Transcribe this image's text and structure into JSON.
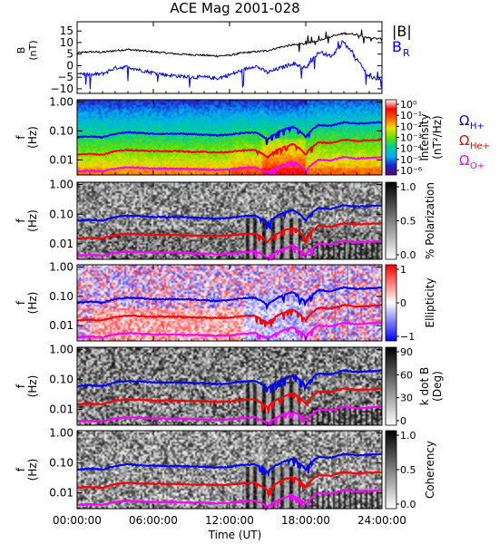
{
  "title": "ACE Mag 2001-028",
  "x_axis": {
    "label": "Time (UT)",
    "ticks": [
      "00:00:00",
      "06:00:00",
      "12:00:00",
      "18:00:00",
      "24:00:00"
    ],
    "tick_hours": [
      0,
      6,
      12,
      18,
      24
    ],
    "range_hours": [
      0,
      24
    ]
  },
  "freq_axis": {
    "scale": "log",
    "range_hz": [
      0.003,
      1.2
    ],
    "ticks": [
      "1.00",
      "0.10",
      "0.01"
    ],
    "tick_values": [
      1.0,
      0.1,
      0.01
    ],
    "label_f": "f",
    "label_unit": "(Hz)"
  },
  "chart_data": [
    {
      "id": "field",
      "type": "line",
      "ylabel": "B",
      "yunit": "(nT)",
      "ylim": [
        -12,
        19
      ],
      "yticks": [
        15,
        10,
        5,
        0,
        -5,
        -10
      ],
      "legend": [
        "|B|",
        "B",
        "R"
      ],
      "series": [
        {
          "name": "|B|",
          "color": "#000000",
          "x": [
            0,
            1,
            2,
            3,
            4,
            5,
            6,
            7,
            8,
            9,
            10,
            11,
            12,
            13,
            14,
            15,
            16,
            17,
            18,
            19,
            20,
            21,
            22,
            23,
            24
          ],
          "y": [
            5.5,
            6,
            5.8,
            6.5,
            7,
            6.5,
            6,
            5.5,
            5,
            4.8,
            4.5,
            4.2,
            4.5,
            5.5,
            6,
            6.5,
            8,
            9,
            9.5,
            11,
            12.5,
            14,
            13.5,
            12,
            11.5
          ]
        },
        {
          "name": "B",
          "color": "#0000ff",
          "x": [
            0,
            1,
            2,
            3,
            4,
            5,
            6,
            7,
            8,
            9,
            10,
            11,
            12,
            13,
            14,
            15,
            16,
            17,
            18,
            19,
            20,
            21,
            22,
            23,
            24
          ],
          "y": [
            -3,
            -4,
            -3.5,
            -1,
            -0.5,
            -2,
            -3,
            -4,
            -4.5,
            -5,
            -5,
            -5.5,
            -4,
            -2,
            0,
            -3,
            -1,
            1,
            -1,
            6,
            4,
            10,
            3,
            -5,
            -6
          ]
        }
      ]
    },
    {
      "id": "intensity",
      "type": "heatmap",
      "cbar_label": "Intensity",
      "cbar_unit": "(nT²/Hz)",
      "cbar_ticks": [
        "10⁰",
        "10⁻¹",
        "10⁻²",
        "10⁻³",
        "10⁻⁴",
        "10⁻⁵",
        "10⁻⁶"
      ],
      "cbar_range": [
        1e-06,
        1
      ],
      "cbar_colors": [
        "#5a007a",
        "#2020d0",
        "#00b0f0",
        "#00d090",
        "#60e000",
        "#f0e000",
        "#ff6000",
        "#ff0000",
        "#ffffff"
      ],
      "legend": [
        {
          "label": "Ω",
          "sub": "H+",
          "color": "#0000ff"
        },
        {
          "label": "Ω",
          "sub": "He+",
          "color": "#ff0000"
        },
        {
          "label": "Ω",
          "sub": "O+",
          "color": "#ff00ff"
        }
      ]
    },
    {
      "id": "polarization",
      "type": "heatmap",
      "cbar_label": "% Polarization",
      "cbar_ticks": [
        "1.0",
        "0.5",
        "0.0"
      ],
      "cbar_range": [
        0,
        1
      ],
      "cbar_colors": [
        "#ffffff",
        "#000000"
      ]
    },
    {
      "id": "ellipticity",
      "type": "heatmap",
      "cbar_label": "Ellipticity",
      "cbar_ticks": [
        "1",
        "0",
        "−1"
      ],
      "cbar_range": [
        -1,
        1
      ],
      "cbar_colors": [
        "#0000ff",
        "#ffffff",
        "#ff0000"
      ]
    },
    {
      "id": "kdotb",
      "type": "heatmap",
      "cbar_label": "k dot B",
      "cbar_unit": "(Deg)",
      "cbar_ticks": [
        "90",
        "60",
        "30",
        "0"
      ],
      "cbar_range": [
        0,
        90
      ],
      "cbar_colors": [
        "#ffffff",
        "#000000"
      ]
    },
    {
      "id": "coherency",
      "type": "heatmap",
      "cbar_label": "Coherency",
      "cbar_ticks": [
        "1.0",
        "0.5",
        "0.0"
      ],
      "cbar_range": [
        0,
        1
      ],
      "cbar_colors": [
        "#ffffff",
        "#000000"
      ]
    }
  ],
  "gyrofrequency_lines": {
    "x": [
      0,
      1,
      2,
      3,
      4,
      5,
      6,
      7,
      8,
      9,
      10,
      11,
      12,
      13,
      14,
      15,
      16,
      17,
      18,
      19,
      20,
      21,
      22,
      23,
      24
    ],
    "h_plus_hz": [
      0.06,
      0.065,
      0.06,
      0.08,
      0.09,
      0.085,
      0.08,
      0.08,
      0.08,
      0.078,
      0.075,
      0.07,
      0.075,
      0.085,
      0.09,
      0.05,
      0.1,
      0.14,
      0.06,
      0.16,
      0.15,
      0.2,
      0.18,
      0.19,
      0.2
    ],
    "he_plus_hz": [
      0.015,
      0.016,
      0.015,
      0.02,
      0.022,
      0.021,
      0.02,
      0.02,
      0.02,
      0.019,
      0.019,
      0.018,
      0.019,
      0.021,
      0.022,
      0.012,
      0.025,
      0.035,
      0.015,
      0.04,
      0.038,
      0.05,
      0.045,
      0.047,
      0.05
    ],
    "o_plus_hz": [
      0.004,
      0.0042,
      0.004,
      0.005,
      0.0055,
      0.0053,
      0.005,
      0.005,
      0.005,
      0.0048,
      0.0047,
      0.0045,
      0.0047,
      0.0052,
      0.0056,
      0.0035,
      0.0062,
      0.0088,
      0.004,
      0.01,
      0.0095,
      0.0125,
      0.011,
      0.0118,
      0.0125
    ],
    "colors": {
      "h_plus": "#0000ff",
      "he_plus": "#ff0000",
      "o_plus": "#ff00ff"
    }
  }
}
